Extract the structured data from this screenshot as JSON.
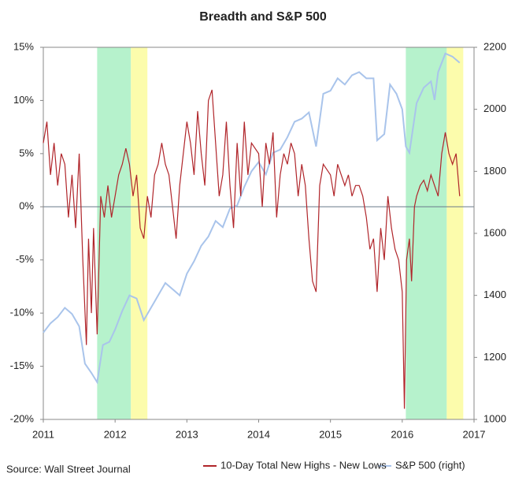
{
  "chart_data": {
    "type": "line",
    "title": "Breadth and S&P 500",
    "source": "Source: Wall Street Journal",
    "xlim": [
      2011,
      2017
    ],
    "xticks": [
      2011,
      2012,
      2013,
      2014,
      2015,
      2016,
      2017
    ],
    "ylim": [
      -20,
      15
    ],
    "yticks": [
      {
        "value": -20,
        "label": "-20%"
      },
      {
        "value": -15,
        "label": "-15%"
      },
      {
        "value": -10,
        "label": "-10%"
      },
      {
        "value": -5,
        "label": "-5%"
      },
      {
        "value": 0,
        "label": "0%"
      },
      {
        "value": 5,
        "label": "5%"
      },
      {
        "value": 10,
        "label": "10%"
      },
      {
        "value": 15,
        "label": "15%"
      }
    ],
    "y2lim": [
      1000,
      2200
    ],
    "y2ticks": [
      1000,
      1200,
      1400,
      1600,
      1800,
      2000,
      2200
    ],
    "bands": [
      {
        "x": [
          2011.75,
          2012.22
        ],
        "color": "#b6f2cc"
      },
      {
        "x": [
          2012.22,
          2012.45
        ],
        "color": "#fcfcac"
      },
      {
        "x": [
          2016.05,
          2016.62
        ],
        "color": "#b6f2cc"
      },
      {
        "x": [
          2016.62,
          2016.85
        ],
        "color": "#fcfcac"
      }
    ],
    "series": [
      {
        "name": "S&P 500 (right)",
        "color": "#a9c4eb",
        "axis": "y2",
        "x": [
          2011.0,
          2011.1,
          2011.2,
          2011.3,
          2011.4,
          2011.5,
          2011.58,
          2011.67,
          2011.75,
          2011.83,
          2011.92,
          2012.0,
          2012.1,
          2012.2,
          2012.3,
          2012.4,
          2012.5,
          2012.6,
          2012.7,
          2012.8,
          2012.9,
          2013.0,
          2013.1,
          2013.2,
          2013.3,
          2013.4,
          2013.5,
          2013.6,
          2013.7,
          2013.8,
          2013.9,
          2014.0,
          2014.1,
          2014.2,
          2014.3,
          2014.4,
          2014.5,
          2014.6,
          2014.7,
          2014.8,
          2014.9,
          2015.0,
          2015.1,
          2015.2,
          2015.3,
          2015.4,
          2015.5,
          2015.6,
          2015.65,
          2015.75,
          2015.83,
          2015.92,
          2016.0,
          2016.05,
          2016.1,
          2016.2,
          2016.3,
          2016.4,
          2016.45,
          2016.5,
          2016.6,
          2016.7,
          2016.8
        ],
        "values": [
          1280,
          1310,
          1330,
          1360,
          1340,
          1300,
          1180,
          1150,
          1120,
          1240,
          1250,
          1290,
          1350,
          1400,
          1390,
          1320,
          1360,
          1400,
          1440,
          1420,
          1400,
          1470,
          1510,
          1560,
          1590,
          1640,
          1620,
          1680,
          1690,
          1750,
          1800,
          1830,
          1790,
          1860,
          1870,
          1910,
          1960,
          1970,
          1990,
          1880,
          2050,
          2060,
          2100,
          2080,
          2110,
          2120,
          2100,
          2100,
          1900,
          1920,
          2080,
          2050,
          2000,
          1880,
          1860,
          2020,
          2070,
          2090,
          2030,
          2120,
          2180,
          2170,
          2150
        ]
      },
      {
        "name": "10-Day Total New Highs - New Lows",
        "color": "#b0252a",
        "axis": "y",
        "x": [
          2011.0,
          2011.05,
          2011.1,
          2011.15,
          2011.2,
          2011.25,
          2011.3,
          2011.35,
          2011.4,
          2011.45,
          2011.5,
          2011.55,
          2011.6,
          2011.63,
          2011.67,
          2011.7,
          2011.75,
          2011.8,
          2011.85,
          2011.9,
          2011.95,
          2012.0,
          2012.05,
          2012.1,
          2012.15,
          2012.2,
          2012.25,
          2012.3,
          2012.35,
          2012.4,
          2012.45,
          2012.5,
          2012.55,
          2012.6,
          2012.65,
          2012.7,
          2012.75,
          2012.8,
          2012.85,
          2012.9,
          2013.0,
          2013.05,
          2013.1,
          2013.15,
          2013.2,
          2013.25,
          2013.3,
          2013.35,
          2013.4,
          2013.45,
          2013.5,
          2013.55,
          2013.6,
          2013.65,
          2013.7,
          2013.75,
          2013.8,
          2013.85,
          2013.9,
          2014.0,
          2014.05,
          2014.1,
          2014.15,
          2014.2,
          2014.25,
          2014.3,
          2014.35,
          2014.4,
          2014.45,
          2014.5,
          2014.55,
          2014.6,
          2014.65,
          2014.7,
          2014.75,
          2014.8,
          2014.85,
          2014.9,
          2015.0,
          2015.05,
          2015.1,
          2015.15,
          2015.2,
          2015.25,
          2015.3,
          2015.35,
          2015.4,
          2015.45,
          2015.5,
          2015.55,
          2015.6,
          2015.65,
          2015.7,
          2015.75,
          2015.8,
          2015.85,
          2015.9,
          2015.95,
          2016.0,
          2016.03,
          2016.06,
          2016.1,
          2016.13,
          2016.17,
          2016.2,
          2016.25,
          2016.3,
          2016.35,
          2016.4,
          2016.45,
          2016.5,
          2016.55,
          2016.6,
          2016.65,
          2016.7,
          2016.75,
          2016.8
        ],
        "values": [
          6,
          8,
          3,
          6,
          2,
          5,
          4,
          -1,
          3,
          -2,
          5,
          -5,
          -13,
          -3,
          -10,
          -2,
          -12,
          1,
          -1,
          2,
          -1,
          1,
          3,
          4,
          5.5,
          4,
          1,
          3,
          -2,
          -3,
          1,
          -1,
          3,
          4,
          6,
          4,
          3,
          0,
          -3,
          2,
          8,
          6,
          3,
          9,
          5,
          2,
          10,
          11,
          6,
          1,
          3,
          8,
          2,
          -2,
          6,
          1,
          8,
          3,
          6,
          5,
          0,
          6,
          4,
          7,
          -1,
          3,
          5,
          4,
          6,
          5,
          1,
          4,
          2,
          -3,
          -7,
          -8,
          2,
          4,
          3,
          1,
          4,
          3,
          2,
          3,
          1,
          2,
          2,
          1,
          -1,
          -4,
          -3,
          -8,
          -2,
          -5,
          1,
          -2,
          -4,
          -5,
          -8,
          -19,
          -5,
          -3,
          -7,
          0,
          1,
          2,
          2.5,
          1.5,
          3,
          2,
          1,
          5,
          7,
          5,
          4,
          5,
          1
        ]
      }
    ]
  }
}
